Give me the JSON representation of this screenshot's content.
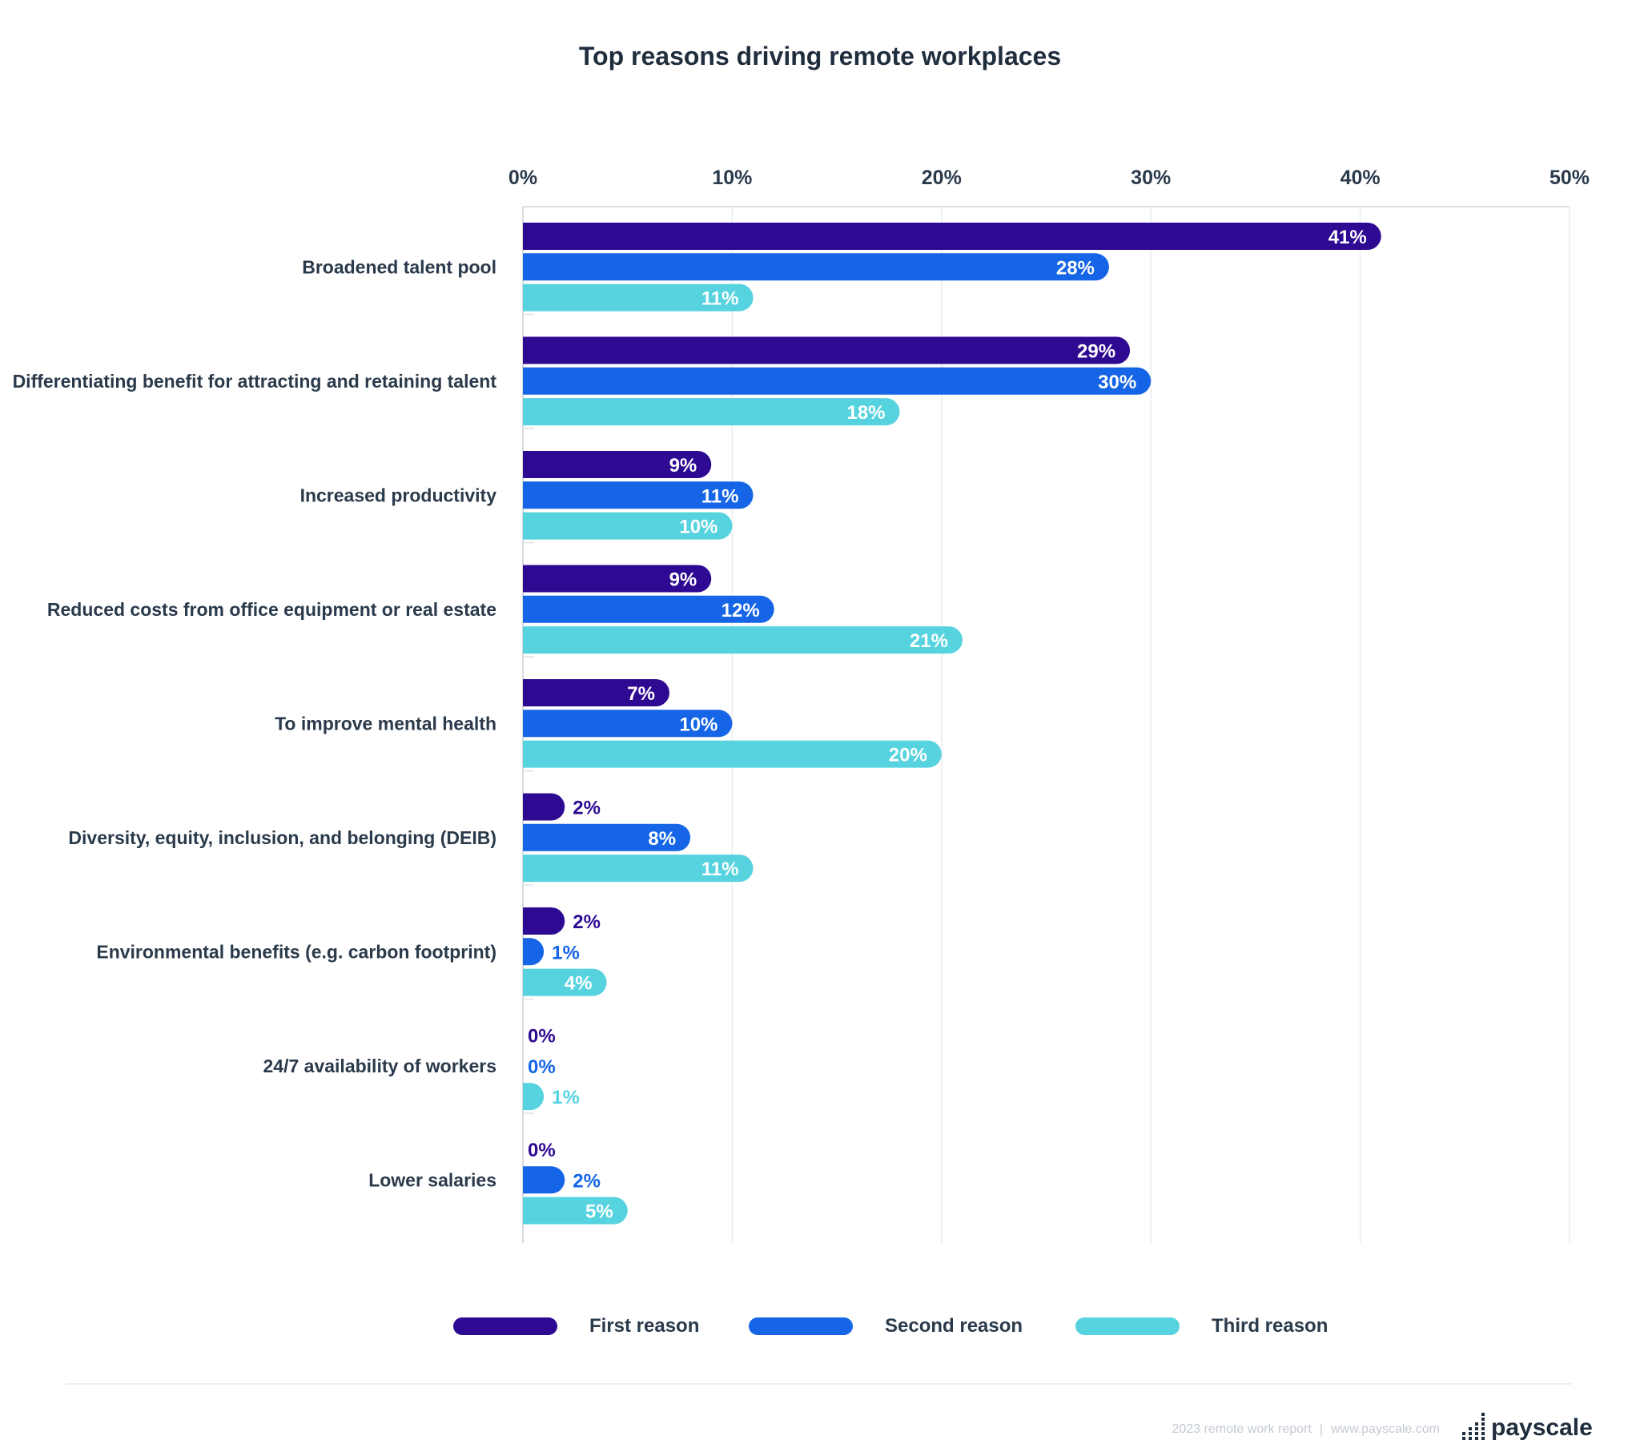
{
  "chart_data": {
    "type": "bar",
    "orientation": "horizontal",
    "title": "Top reasons driving remote workplaces",
    "xlabel": "",
    "ylabel": "",
    "xlim": [
      0,
      50
    ],
    "ticks": [
      "0%",
      "10%",
      "20%",
      "30%",
      "40%",
      "50%"
    ],
    "grid": true,
    "legend_position": "bottom",
    "categories": [
      "Broadened talent pool",
      "Differentiating benefit for attracting and retaining talent",
      "Increased productivity",
      "Reduced costs from office equipment or real estate",
      "To improve mental health",
      "Diversity, equity, inclusion, and belonging (DEIB)",
      "Environmental benefits (e.g. carbon footprint)",
      "24/7 availability of workers",
      "Lower salaries"
    ],
    "series": [
      {
        "name": "First reason",
        "color": "#2e0a93",
        "values": [
          41,
          29,
          9,
          9,
          7,
          2,
          2,
          0,
          0
        ]
      },
      {
        "name": "Second reason",
        "color": "#1565e6",
        "values": [
          28,
          30,
          11,
          12,
          10,
          8,
          1,
          0,
          2
        ]
      },
      {
        "name": "Third reason",
        "color": "#56d3df",
        "values": [
          11,
          18,
          10,
          21,
          20,
          11,
          4,
          1,
          5
        ]
      }
    ]
  },
  "footer": {
    "report": "2023 remote work report",
    "separator": "|",
    "website": "www.payscale.com",
    "brand": "payscale"
  }
}
